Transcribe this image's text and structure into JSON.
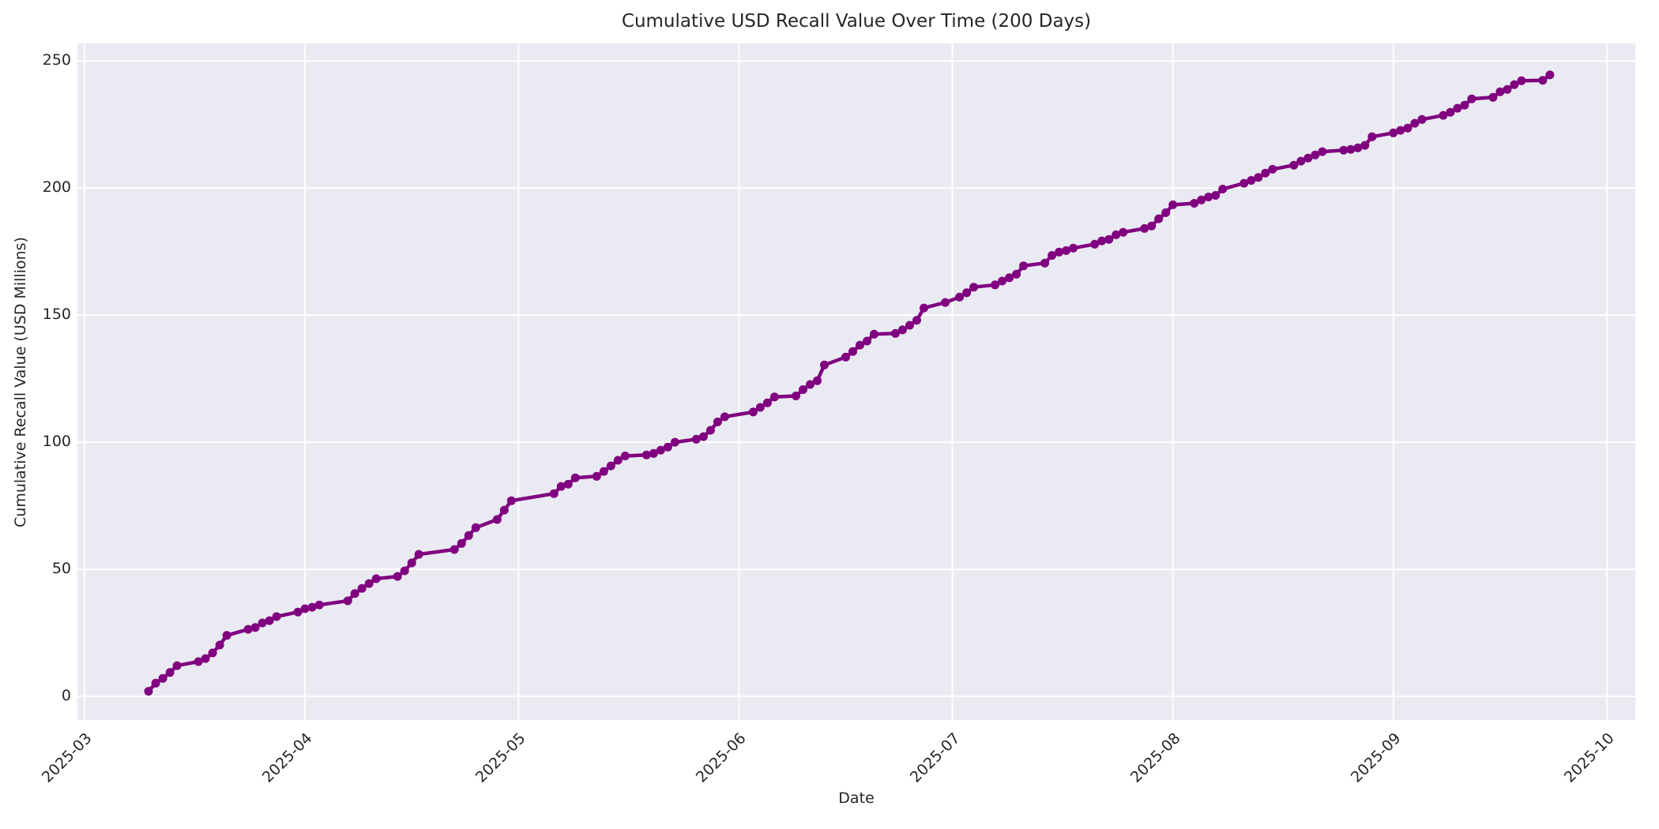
{
  "figure": {
    "title": "Cumulative USD Recall Value Over Time (200 Days)",
    "xlabel": "Date",
    "ylabel": "Cumulative Recall Value (USD Millions)"
  },
  "chart_data": {
    "type": "line",
    "title": "Cumulative USD Recall Value Over Time (200 Days)",
    "xlabel": "Date",
    "ylabel": "Cumulative Recall Value (USD Millions)",
    "grid": true,
    "legend": false,
    "background_color": "#EAEAF2",
    "gridline_color": "#FFFFFF",
    "line_color": "#800080",
    "marker": "o",
    "x_tick_labels": [
      "2025-03",
      "2025-04",
      "2025-05",
      "2025-06",
      "2025-07",
      "2025-08",
      "2025-09",
      "2025-10"
    ],
    "x_tick_dates": [
      "2025-03-01",
      "2025-04-01",
      "2025-05-01",
      "2025-06-01",
      "2025-07-01",
      "2025-08-01",
      "2025-09-01",
      "2025-10-01"
    ],
    "y_tick_values": [
      0,
      50,
      100,
      150,
      200,
      250
    ],
    "xlim": [
      "2025-02-28",
      "2025-10-05"
    ],
    "ylim": [
      -9.3,
      256.9
    ],
    "series": [
      {
        "name": "cumulative_recall_value_usd_millions",
        "points": [
          [
            "2025-03-10",
            2.0
          ],
          [
            "2025-03-11",
            5.2
          ],
          [
            "2025-03-12",
            7.1
          ],
          [
            "2025-03-13",
            9.4
          ],
          [
            "2025-03-14",
            12.1
          ],
          [
            "2025-03-17",
            13.7
          ],
          [
            "2025-03-18",
            14.9
          ],
          [
            "2025-03-19",
            17.1
          ],
          [
            "2025-03-20",
            20.2
          ],
          [
            "2025-03-21",
            24.0
          ],
          [
            "2025-03-24",
            26.4
          ],
          [
            "2025-03-25",
            27.1
          ],
          [
            "2025-03-26",
            28.9
          ],
          [
            "2025-03-27",
            29.8
          ],
          [
            "2025-03-28",
            31.4
          ],
          [
            "2025-03-31",
            33.2
          ],
          [
            "2025-04-01",
            34.5
          ],
          [
            "2025-04-02",
            35.1
          ],
          [
            "2025-04-03",
            36.0
          ],
          [
            "2025-04-07",
            37.6
          ],
          [
            "2025-04-08",
            40.5
          ],
          [
            "2025-04-09",
            42.5
          ],
          [
            "2025-04-10",
            44.4
          ],
          [
            "2025-04-11",
            46.3
          ],
          [
            "2025-04-14",
            47.2
          ],
          [
            "2025-04-15",
            49.4
          ],
          [
            "2025-04-16",
            52.5
          ],
          [
            "2025-04-17",
            55.9
          ],
          [
            "2025-04-22",
            57.8
          ],
          [
            "2025-04-23",
            60.2
          ],
          [
            "2025-04-24",
            63.3
          ],
          [
            "2025-04-25",
            66.4
          ],
          [
            "2025-04-28",
            69.6
          ],
          [
            "2025-04-29",
            73.3
          ],
          [
            "2025-04-30",
            77.0
          ],
          [
            "2025-05-06",
            79.8
          ],
          [
            "2025-05-07",
            82.6
          ],
          [
            "2025-05-08",
            83.5
          ],
          [
            "2025-05-09",
            86.0
          ],
          [
            "2025-05-12",
            86.6
          ],
          [
            "2025-05-13",
            88.5
          ],
          [
            "2025-05-14",
            90.7
          ],
          [
            "2025-05-15",
            92.9
          ],
          [
            "2025-05-16",
            94.6
          ],
          [
            "2025-05-19",
            95.0
          ],
          [
            "2025-05-20",
            95.6
          ],
          [
            "2025-05-21",
            96.9
          ],
          [
            "2025-05-22",
            98.1
          ],
          [
            "2025-05-23",
            100.0
          ],
          [
            "2025-05-26",
            101.2
          ],
          [
            "2025-05-27",
            102.2
          ],
          [
            "2025-05-28",
            104.7
          ],
          [
            "2025-05-29",
            108.0
          ],
          [
            "2025-05-30",
            110.0
          ],
          [
            "2025-06-03",
            111.9
          ],
          [
            "2025-06-04",
            113.7
          ],
          [
            "2025-06-05",
            115.5
          ],
          [
            "2025-06-06",
            117.8
          ],
          [
            "2025-06-09",
            118.2
          ],
          [
            "2025-06-10",
            120.7
          ],
          [
            "2025-06-11",
            122.7
          ],
          [
            "2025-06-12",
            124.2
          ],
          [
            "2025-06-13",
            130.4
          ],
          [
            "2025-06-16",
            133.5
          ],
          [
            "2025-06-17",
            135.7
          ],
          [
            "2025-06-18",
            138.2
          ],
          [
            "2025-06-19",
            139.8
          ],
          [
            "2025-06-20",
            142.5
          ],
          [
            "2025-06-23",
            142.8
          ],
          [
            "2025-06-24",
            144.2
          ],
          [
            "2025-06-25",
            146.0
          ],
          [
            "2025-06-26",
            148.0
          ],
          [
            "2025-06-27",
            152.8
          ],
          [
            "2025-06-30",
            155.0
          ],
          [
            "2025-07-02",
            157.1
          ],
          [
            "2025-07-03",
            158.8
          ],
          [
            "2025-07-04",
            161.0
          ],
          [
            "2025-07-07",
            161.9
          ],
          [
            "2025-07-08",
            163.4
          ],
          [
            "2025-07-09",
            164.7
          ],
          [
            "2025-07-10",
            166.1
          ],
          [
            "2025-07-11",
            169.4
          ],
          [
            "2025-07-14",
            170.5
          ],
          [
            "2025-07-15",
            173.5
          ],
          [
            "2025-07-16",
            174.8
          ],
          [
            "2025-07-17",
            175.4
          ],
          [
            "2025-07-18",
            176.4
          ],
          [
            "2025-07-21",
            177.9
          ],
          [
            "2025-07-22",
            179.2
          ],
          [
            "2025-07-23",
            179.8
          ],
          [
            "2025-07-24",
            181.6
          ],
          [
            "2025-07-25",
            182.6
          ],
          [
            "2025-07-28",
            184.1
          ],
          [
            "2025-07-29",
            185.1
          ],
          [
            "2025-07-30",
            187.9
          ],
          [
            "2025-07-31",
            190.3
          ],
          [
            "2025-08-01",
            193.4
          ],
          [
            "2025-08-04",
            194.0
          ],
          [
            "2025-08-05",
            195.3
          ],
          [
            "2025-08-06",
            196.5
          ],
          [
            "2025-08-07",
            197.1
          ],
          [
            "2025-08-08",
            199.6
          ],
          [
            "2025-08-11",
            201.9
          ],
          [
            "2025-08-12",
            203.0
          ],
          [
            "2025-08-13",
            204.2
          ],
          [
            "2025-08-14",
            205.9
          ],
          [
            "2025-08-15",
            207.4
          ],
          [
            "2025-08-18",
            209.0
          ],
          [
            "2025-08-19",
            210.6
          ],
          [
            "2025-08-20",
            211.8
          ],
          [
            "2025-08-21",
            213.0
          ],
          [
            "2025-08-22",
            214.3
          ],
          [
            "2025-08-25",
            214.9
          ],
          [
            "2025-08-26",
            215.2
          ],
          [
            "2025-08-27",
            215.8
          ],
          [
            "2025-08-28",
            216.8
          ],
          [
            "2025-08-29",
            220.2
          ],
          [
            "2025-09-01",
            221.7
          ],
          [
            "2025-09-02",
            222.7
          ],
          [
            "2025-09-03",
            223.6
          ],
          [
            "2025-09-04",
            225.5
          ],
          [
            "2025-09-05",
            227.0
          ],
          [
            "2025-09-08",
            228.6
          ],
          [
            "2025-09-09",
            229.8
          ],
          [
            "2025-09-10",
            231.4
          ],
          [
            "2025-09-11",
            232.6
          ],
          [
            "2025-09-12",
            235.1
          ],
          [
            "2025-09-15",
            235.7
          ],
          [
            "2025-09-16",
            237.9
          ],
          [
            "2025-09-17",
            238.8
          ],
          [
            "2025-09-18",
            240.7
          ],
          [
            "2025-09-19",
            242.2
          ],
          [
            "2025-09-22",
            242.4
          ],
          [
            "2025-09-23",
            244.5
          ]
        ]
      }
    ]
  }
}
